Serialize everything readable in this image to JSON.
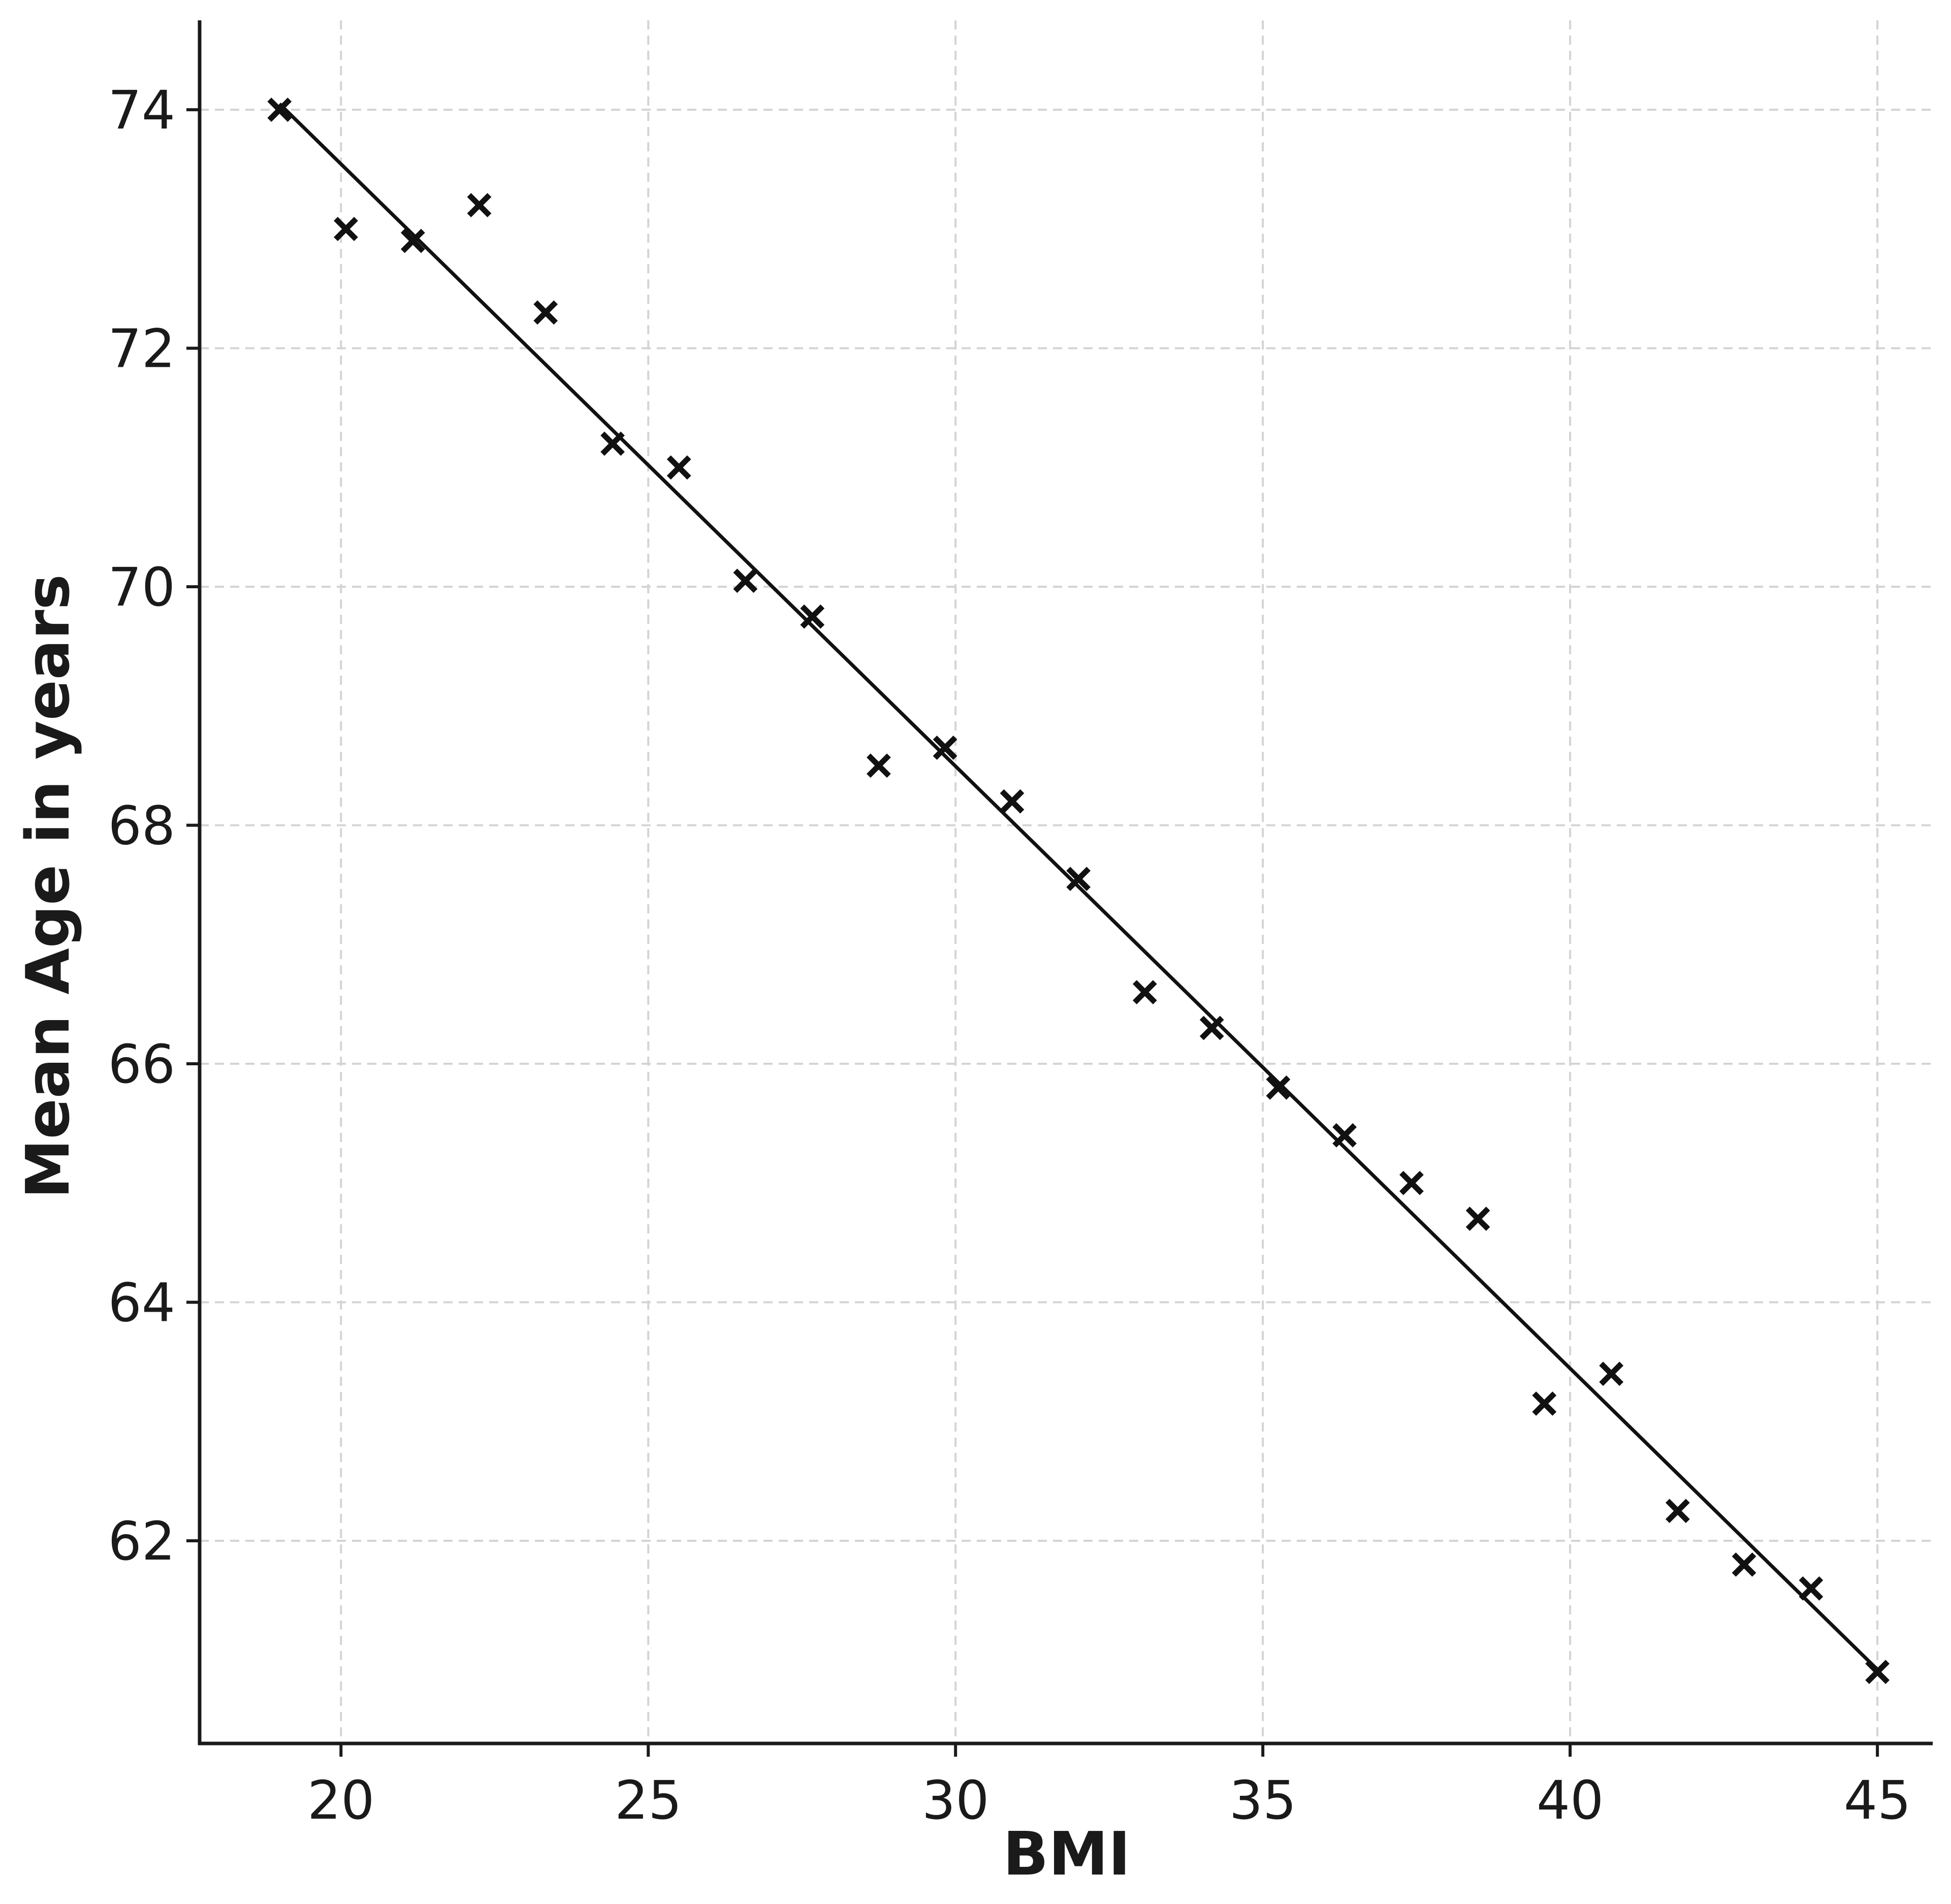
{
  "chart_data": {
    "type": "scatter",
    "title": "",
    "xlabel": "BMI",
    "ylabel": "Mean Age in years",
    "xlim": [
      17.7,
      45.9
    ],
    "ylim": [
      60.3,
      74.75
    ],
    "xticks": [
      20,
      25,
      30,
      35,
      40,
      45
    ],
    "yticks": [
      62,
      64,
      66,
      68,
      70,
      72,
      74
    ],
    "grid": true,
    "legend": "none",
    "colors": {
      "markers": "#111111",
      "line": "#111111",
      "grid": "#d4d4d4"
    },
    "series": [
      {
        "marker": "x",
        "x": [
          19.0,
          20.08,
          21.17,
          22.25,
          23.33,
          24.42,
          25.5,
          26.58,
          27.67,
          28.75,
          29.83,
          30.92,
          32.0,
          33.08,
          34.17,
          35.25,
          36.33,
          37.42,
          38.5,
          39.58,
          40.67,
          41.75,
          42.83,
          43.92,
          45.0
        ],
        "y": [
          74.0,
          73.0,
          72.9,
          73.2,
          72.3,
          71.2,
          71.0,
          70.05,
          69.75,
          68.5,
          68.65,
          68.2,
          67.55,
          66.6,
          66.3,
          65.8,
          65.4,
          65.0,
          64.7,
          63.15,
          63.4,
          62.25,
          61.8,
          61.6,
          60.9
        ]
      }
    ],
    "trendline": {
      "x": [
        19.0,
        45.0
      ],
      "y": [
        74.05,
        60.92
      ]
    }
  }
}
